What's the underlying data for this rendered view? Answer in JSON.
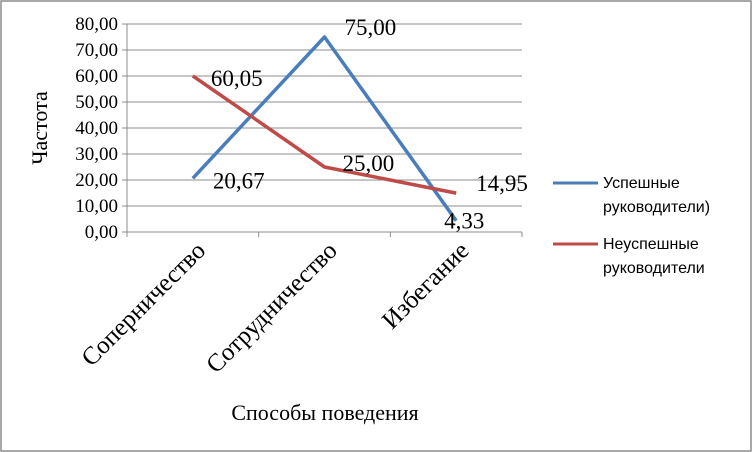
{
  "chart_data": {
    "type": "line",
    "title": "",
    "xlabel": "Способы поведения",
    "ylabel": "Частота",
    "categories": [
      "Соперничество",
      "Сотрудничество",
      "Избегание"
    ],
    "ylim": [
      0,
      80
    ],
    "ytick_labels": [
      "0,00",
      "10,00",
      "20,00",
      "30,00",
      "40,00",
      "50,00",
      "60,00",
      "70,00",
      "80,00"
    ],
    "grid": true,
    "legend": "right",
    "series": [
      {
        "name_lines": [
          "Успешные",
          "руководители)"
        ],
        "values": [
          20.67,
          75.0,
          4.33
        ],
        "labels": [
          "20,67",
          "75,00",
          "4,33"
        ],
        "color": "#4a7ebb"
      },
      {
        "name_lines": [
          "Неуспешные",
          "руководители"
        ],
        "values": [
          60.05,
          25.0,
          14.95
        ],
        "labels": [
          "60,05",
          "25,00",
          "14,95"
        ],
        "color": "#be4b48"
      }
    ]
  }
}
